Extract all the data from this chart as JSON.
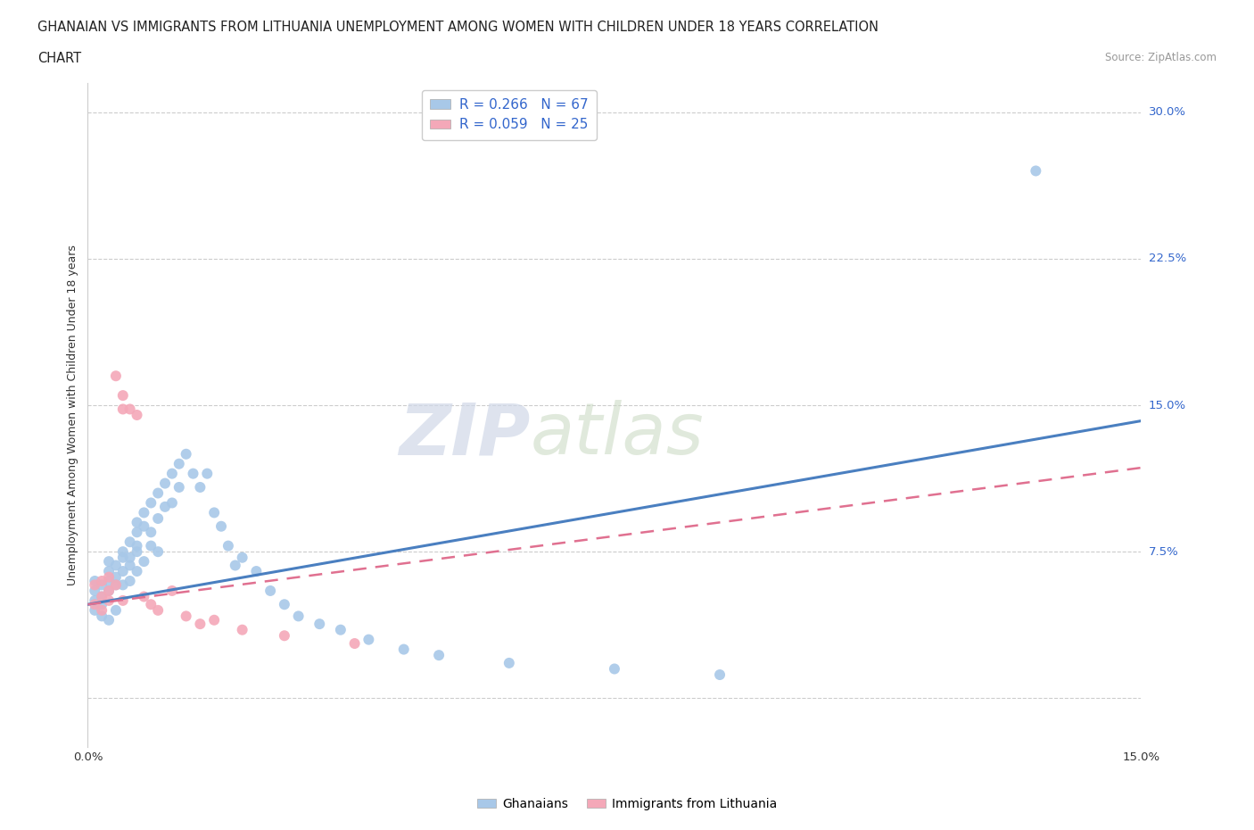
{
  "title_line1": "GHANAIAN VS IMMIGRANTS FROM LITHUANIA UNEMPLOYMENT AMONG WOMEN WITH CHILDREN UNDER 18 YEARS CORRELATION",
  "title_line2": "CHART",
  "source": "Source: ZipAtlas.com",
  "xmin": 0.0,
  "xmax": 0.15,
  "ymin": -0.025,
  "ymax": 0.315,
  "color_blue": "#a8c8e8",
  "color_pink": "#f4a8b8",
  "color_blue_text": "#3366cc",
  "trendline_blue": "#4a7fc0",
  "trendline_pink": "#e07090",
  "trend_blue_y0": 0.048,
  "trend_blue_y1": 0.142,
  "trend_pink_y0": 0.048,
  "trend_pink_y1": 0.118,
  "ghanaian_x": [
    0.001,
    0.001,
    0.001,
    0.001,
    0.002,
    0.002,
    0.002,
    0.002,
    0.003,
    0.003,
    0.003,
    0.003,
    0.003,
    0.004,
    0.004,
    0.004,
    0.004,
    0.005,
    0.005,
    0.005,
    0.005,
    0.006,
    0.006,
    0.006,
    0.006,
    0.007,
    0.007,
    0.007,
    0.007,
    0.007,
    0.008,
    0.008,
    0.008,
    0.009,
    0.009,
    0.009,
    0.01,
    0.01,
    0.01,
    0.011,
    0.011,
    0.012,
    0.012,
    0.013,
    0.013,
    0.014,
    0.015,
    0.016,
    0.017,
    0.018,
    0.019,
    0.02,
    0.021,
    0.022,
    0.024,
    0.026,
    0.028,
    0.03,
    0.033,
    0.036,
    0.04,
    0.045,
    0.05,
    0.06,
    0.075,
    0.09,
    0.135
  ],
  "ghanaian_y": [
    0.05,
    0.055,
    0.06,
    0.045,
    0.052,
    0.048,
    0.058,
    0.042,
    0.065,
    0.055,
    0.06,
    0.04,
    0.07,
    0.062,
    0.058,
    0.068,
    0.045,
    0.072,
    0.065,
    0.058,
    0.075,
    0.08,
    0.068,
    0.072,
    0.06,
    0.085,
    0.078,
    0.065,
    0.09,
    0.075,
    0.095,
    0.088,
    0.07,
    0.1,
    0.085,
    0.078,
    0.105,
    0.092,
    0.075,
    0.11,
    0.098,
    0.115,
    0.1,
    0.12,
    0.108,
    0.125,
    0.115,
    0.108,
    0.115,
    0.095,
    0.088,
    0.078,
    0.068,
    0.072,
    0.065,
    0.055,
    0.048,
    0.042,
    0.038,
    0.035,
    0.03,
    0.025,
    0.022,
    0.018,
    0.015,
    0.012,
    0.27
  ],
  "lithuania_x": [
    0.001,
    0.001,
    0.002,
    0.002,
    0.002,
    0.003,
    0.003,
    0.003,
    0.004,
    0.004,
    0.005,
    0.005,
    0.005,
    0.006,
    0.007,
    0.008,
    0.009,
    0.01,
    0.012,
    0.014,
    0.016,
    0.018,
    0.022,
    0.028,
    0.038
  ],
  "lithuania_y": [
    0.058,
    0.048,
    0.052,
    0.045,
    0.06,
    0.055,
    0.05,
    0.062,
    0.165,
    0.058,
    0.148,
    0.155,
    0.05,
    0.148,
    0.145,
    0.052,
    0.048,
    0.045,
    0.055,
    0.042,
    0.038,
    0.04,
    0.035,
    0.032,
    0.028
  ]
}
